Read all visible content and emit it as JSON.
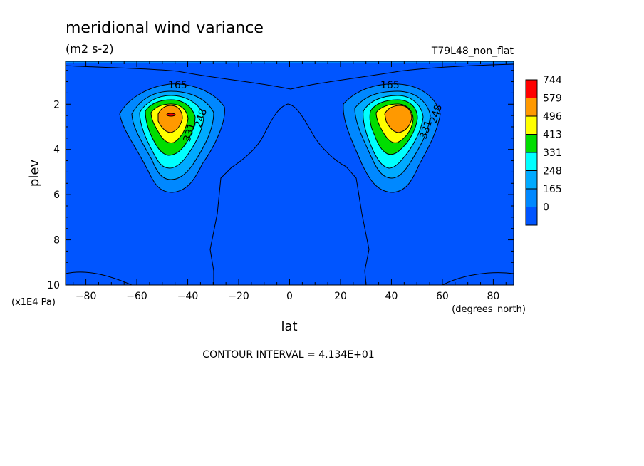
{
  "chart_data": {
    "type": "contour",
    "title": "meridional wind variance",
    "units": "(m2 s-2)",
    "run_label": "T79L48_non_flat",
    "xlabel": "lat",
    "x_units": "(degrees_north)",
    "ylabel": "plev",
    "y_units": "(x1E4 Pa)",
    "xlim": [
      -88,
      88
    ],
    "ylim": [
      10,
      0.1
    ],
    "x_ticks": [
      -80,
      -60,
      -40,
      -20,
      0,
      20,
      40,
      60,
      80
    ],
    "y_ticks": [
      2,
      4,
      6,
      8,
      10
    ],
    "contour_interval_text": "CONTOUR INTERVAL = 4.134E+01",
    "colorbar": {
      "levels": [
        "744",
        "579",
        "496",
        "413",
        "331",
        "248",
        "165",
        "0"
      ],
      "colors": [
        "#ff0000",
        "#ff9900",
        "#ffff00",
        "#00dd00",
        "#00ffff",
        "#00aaff",
        "#0088ff",
        "#0055ff"
      ]
    },
    "contour_labels": [
      "165",
      "248",
      "331",
      "165",
      "248",
      "331"
    ],
    "maxima": [
      {
        "lat": -47,
        "plev": 2.5,
        "value": 744
      },
      {
        "lat": 47,
        "plev": 2.5,
        "value": 744
      }
    ]
  }
}
